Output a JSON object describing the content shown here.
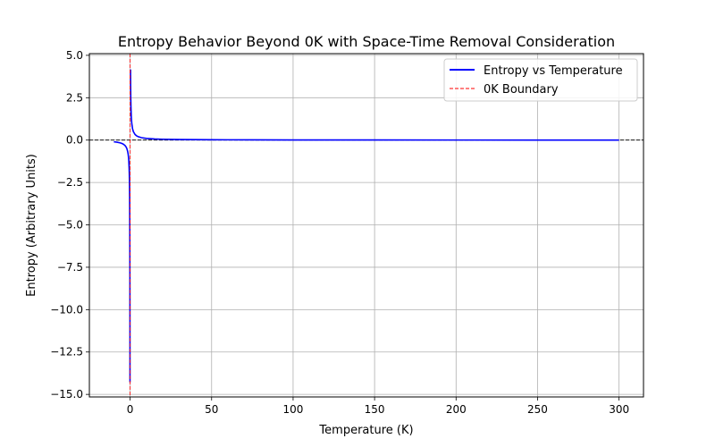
{
  "chart_data": {
    "type": "line",
    "title": "Entropy Behavior Beyond 0K with Space-Time Removal Consideration",
    "xlabel": "Temperature (K)",
    "ylabel": "Entropy (Arbitrary Units)",
    "xlim": [
      -25,
      315
    ],
    "ylim": [
      -15.15,
      5.1
    ],
    "xticks": [
      0,
      50,
      100,
      150,
      200,
      250,
      300
    ],
    "yticks": [
      -15.0,
      -12.5,
      -10.0,
      -7.5,
      -5.0,
      -2.5,
      0.0,
      2.5,
      5.0
    ],
    "xtick_labels": [
      "0",
      "50",
      "100",
      "150",
      "200",
      "250",
      "300"
    ],
    "ytick_labels": [
      "−15.0",
      "−12.5",
      "−10.0",
      "−7.5",
      "−5.0",
      "−2.5",
      "0.0",
      "2.5",
      "5.0"
    ],
    "grid": true,
    "legend_position": "top-right",
    "series": [
      {
        "name": "Entropy vs Temperature",
        "color": "#0000ff",
        "style": "solid",
        "segments": [
          {
            "x": [
              -10,
              -8,
              -6,
              -5,
              -4,
              -3,
              -2.5,
              -2,
              -1.5,
              -1.2,
              -1,
              -0.8,
              -0.6,
              -0.5,
              -0.4,
              -0.3,
              -0.2,
              -0.12,
              -0.07
            ],
            "y": [
              -0.1,
              -0.125,
              -0.167,
              -0.2,
              -0.25,
              -0.333,
              -0.4,
              -0.5,
              -0.667,
              -0.833,
              -1.0,
              -1.25,
              -1.667,
              -2.0,
              -2.5,
              -3.333,
              -5.0,
              -8.333,
              -14.286
            ]
          },
          {
            "x": [
              0.24,
              0.3,
              0.4,
              0.5,
              0.7,
              1,
              1.5,
              2,
              3,
              4,
              5,
              7,
              10,
              15,
              20,
              30,
              50,
              75,
              100,
              150,
              200,
              250,
              300
            ],
            "y": [
              4.167,
              3.333,
              2.5,
              2.0,
              1.429,
              1.0,
              0.667,
              0.5,
              0.333,
              0.25,
              0.2,
              0.143,
              0.1,
              0.067,
              0.05,
              0.033,
              0.02,
              0.013,
              0.01,
              0.007,
              0.005,
              0.004,
              0.003
            ]
          }
        ]
      },
      {
        "name": "0K Boundary",
        "color": "#ff0000",
        "style": "dashed",
        "vline_x": 0
      }
    ],
    "reference_lines": [
      {
        "type": "hline",
        "y": 0,
        "color": "#000000",
        "style": "dashed"
      }
    ]
  }
}
